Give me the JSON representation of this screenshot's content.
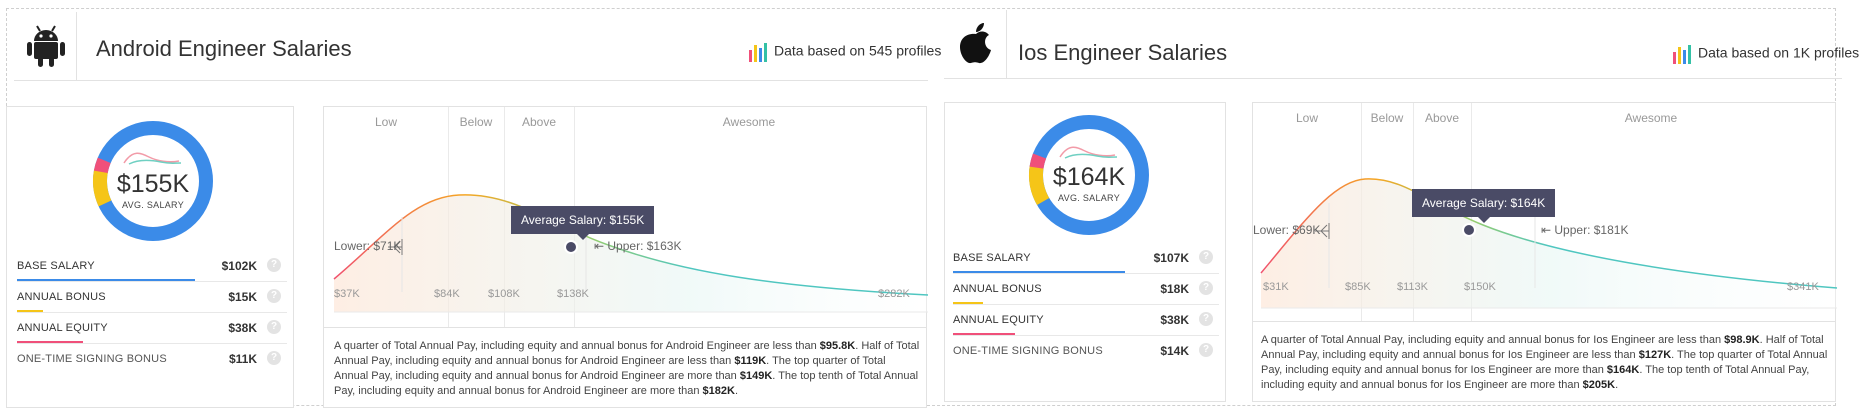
{
  "panels": [
    {
      "title": "Android Engineer Salaries",
      "data_based": "Data based on 545 profiles",
      "logo_icon": "android-icon",
      "avg_salary": "$155K",
      "avg_label": "AVG. SALARY",
      "components": [
        {
          "label": "BASE SALARY",
          "value": "$102K",
          "color": "#3b8be8"
        },
        {
          "label": "ANNUAL BONUS",
          "value": "$15K",
          "color": "#f5c518"
        },
        {
          "label": "ANNUAL EQUITY",
          "value": "$38K",
          "color": "#f0507a"
        },
        {
          "label": "ONE-TIME SIGNING BONUS",
          "value": "$11K",
          "color": ""
        }
      ],
      "zones": [
        "Low",
        "Below",
        "Above",
        "Awesome"
      ],
      "ticks": [
        "$37K",
        "$84K",
        "$108K",
        "$138K",
        "$282K"
      ],
      "lower_label": "Lower: $71K",
      "upper_label": "Upper: $163K",
      "tooltip": "Average Salary: $155K",
      "desc_parts": [
        "A quarter of Total Annual Pay, including equity and annual bonus for Android Engineer are less than ",
        "$95.8K",
        ". Half of Total Annual Pay, including equity and annual bonus for Android Engineer are less than ",
        "$119K",
        ". The top quarter of Total Annual Pay, including equity and annual bonus for Android Engineer are more than ",
        "$149K",
        ". The top tenth of Total Annual Pay, including equity and annual bonus for Android Engineer are more than ",
        "$182K",
        "."
      ]
    },
    {
      "title": "Ios Engineer Salaries",
      "data_based": "Data based on 1K profiles",
      "logo_icon": "apple-icon",
      "avg_salary": "$164K",
      "avg_label": "AVG. SALARY",
      "components": [
        {
          "label": "BASE SALARY",
          "value": "$107K",
          "color": "#3b8be8"
        },
        {
          "label": "ANNUAL BONUS",
          "value": "$18K",
          "color": "#f5c518"
        },
        {
          "label": "ANNUAL EQUITY",
          "value": "$38K",
          "color": "#f0507a"
        },
        {
          "label": "ONE-TIME SIGNING BONUS",
          "value": "$14K",
          "color": ""
        }
      ],
      "zones": [
        "Low",
        "Below",
        "Above",
        "Awesome"
      ],
      "ticks": [
        "$31K",
        "$85K",
        "$113K",
        "$150K",
        "$341K"
      ],
      "lower_label": "Lower: $69K",
      "upper_label": "Upper: $181K",
      "tooltip": "Average Salary: $164K",
      "desc_parts": [
        "A quarter of Total Annual Pay, including equity and annual bonus for Ios Engineer are less than ",
        "$98.9K",
        ". Half of Total Annual Pay, including equity and annual bonus for Ios Engineer are less than ",
        "$127K",
        ". The top quarter of Total Annual Pay, including equity and annual bonus for Ios Engineer are more than ",
        "$164K",
        ". The top tenth of Total Annual Pay, including equity and annual bonus for Ios Engineer are more than ",
        "$205K",
        "."
      ]
    }
  ]
}
